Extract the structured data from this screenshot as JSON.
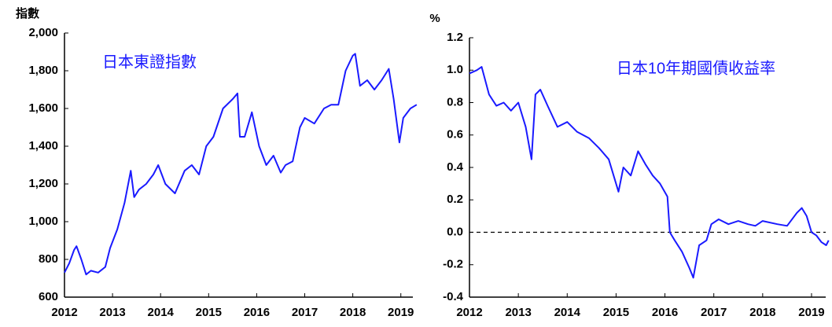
{
  "chart_data": [
    {
      "type": "line",
      "ylabel": "指數",
      "annotation": "日本東證指數",
      "xlim": [
        2012,
        2019.25
      ],
      "xticks": [
        2012,
        2013,
        2014,
        2015,
        2016,
        2017,
        2018,
        2019
      ],
      "ylim": [
        600,
        2000
      ],
      "yticks": [
        600,
        800,
        {
          "value": 1000,
          "label": "1,000"
        },
        {
          "value": 1200,
          "label": "1,200"
        },
        {
          "value": 1400,
          "label": "1,400"
        },
        {
          "value": 1600,
          "label": "1,600"
        },
        {
          "value": 1800,
          "label": "1,800"
        },
        {
          "value": 2000,
          "label": "2,000"
        }
      ],
      "series": [
        {
          "color": "#1a1aff",
          "x": [
            2012.0,
            2012.1,
            2012.2,
            2012.25,
            2012.35,
            2012.45,
            2012.55,
            2012.7,
            2012.85,
            2012.95,
            2013.1,
            2013.25,
            2013.38,
            2013.45,
            2013.55,
            2013.7,
            2013.85,
            2013.95,
            2014.1,
            2014.3,
            2014.5,
            2014.65,
            2014.8,
            2014.95,
            2015.1,
            2015.3,
            2015.5,
            2015.6,
            2015.65,
            2015.75,
            2015.9,
            2016.05,
            2016.2,
            2016.35,
            2016.5,
            2016.6,
            2016.75,
            2016.9,
            2017.0,
            2017.2,
            2017.4,
            2017.55,
            2017.7,
            2017.85,
            2018.0,
            2018.05,
            2018.15,
            2018.3,
            2018.45,
            2018.6,
            2018.75,
            2018.85,
            2018.97,
            2019.05,
            2019.2,
            2019.33
          ],
          "values": [
            730,
            780,
            850,
            870,
            800,
            720,
            740,
            730,
            760,
            860,
            960,
            1100,
            1270,
            1130,
            1170,
            1200,
            1250,
            1300,
            1200,
            1150,
            1270,
            1300,
            1250,
            1400,
            1450,
            1600,
            1650,
            1680,
            1450,
            1450,
            1580,
            1400,
            1300,
            1350,
            1260,
            1300,
            1320,
            1500,
            1550,
            1520,
            1600,
            1620,
            1620,
            1800,
            1880,
            1890,
            1720,
            1750,
            1700,
            1750,
            1810,
            1650,
            1420,
            1550,
            1600,
            1620
          ]
        }
      ]
    },
    {
      "type": "line",
      "ylabel": "%",
      "annotation": "日本10年期國債收益率",
      "reference_line": 0,
      "xlim": [
        2012,
        2019.29
      ],
      "xticks": [
        2012,
        2013,
        2014,
        2015,
        2016,
        2017,
        2018,
        2019
      ],
      "ylim": [
        -0.4,
        1.2
      ],
      "yticks": [
        -0.4,
        -0.2,
        {
          "value": 0,
          "label": "0.0"
        },
        0.2,
        0.4,
        0.6,
        0.8,
        {
          "value": 1,
          "label": "1.0"
        },
        1.2
      ],
      "series": [
        {
          "color": "#1a1aff",
          "x": [
            2012.0,
            2012.15,
            2012.25,
            2012.4,
            2012.55,
            2012.7,
            2012.85,
            2013.0,
            2013.15,
            2013.27,
            2013.35,
            2013.45,
            2013.6,
            2013.8,
            2014.0,
            2014.2,
            2014.45,
            2014.65,
            2014.85,
            2015.05,
            2015.15,
            2015.3,
            2015.45,
            2015.6,
            2015.75,
            2015.9,
            2016.05,
            2016.1,
            2016.2,
            2016.35,
            2016.5,
            2016.58,
            2016.7,
            2016.85,
            2016.95,
            2017.1,
            2017.3,
            2017.5,
            2017.7,
            2017.85,
            2018.0,
            2018.3,
            2018.5,
            2018.7,
            2018.8,
            2018.9,
            2019.0,
            2019.1,
            2019.2,
            2019.3,
            2019.35
          ],
          "values": [
            0.98,
            1.0,
            1.02,
            0.85,
            0.78,
            0.8,
            0.75,
            0.8,
            0.65,
            0.45,
            0.85,
            0.88,
            0.78,
            0.65,
            0.68,
            0.62,
            0.58,
            0.52,
            0.45,
            0.25,
            0.4,
            0.35,
            0.5,
            0.42,
            0.35,
            0.3,
            0.22,
            0.0,
            -0.05,
            -0.12,
            -0.22,
            -0.28,
            -0.08,
            -0.05,
            0.05,
            0.08,
            0.05,
            0.07,
            0.05,
            0.04,
            0.07,
            0.05,
            0.04,
            0.12,
            0.15,
            0.1,
            0.0,
            -0.02,
            -0.06,
            -0.08,
            -0.05
          ]
        }
      ]
    }
  ]
}
